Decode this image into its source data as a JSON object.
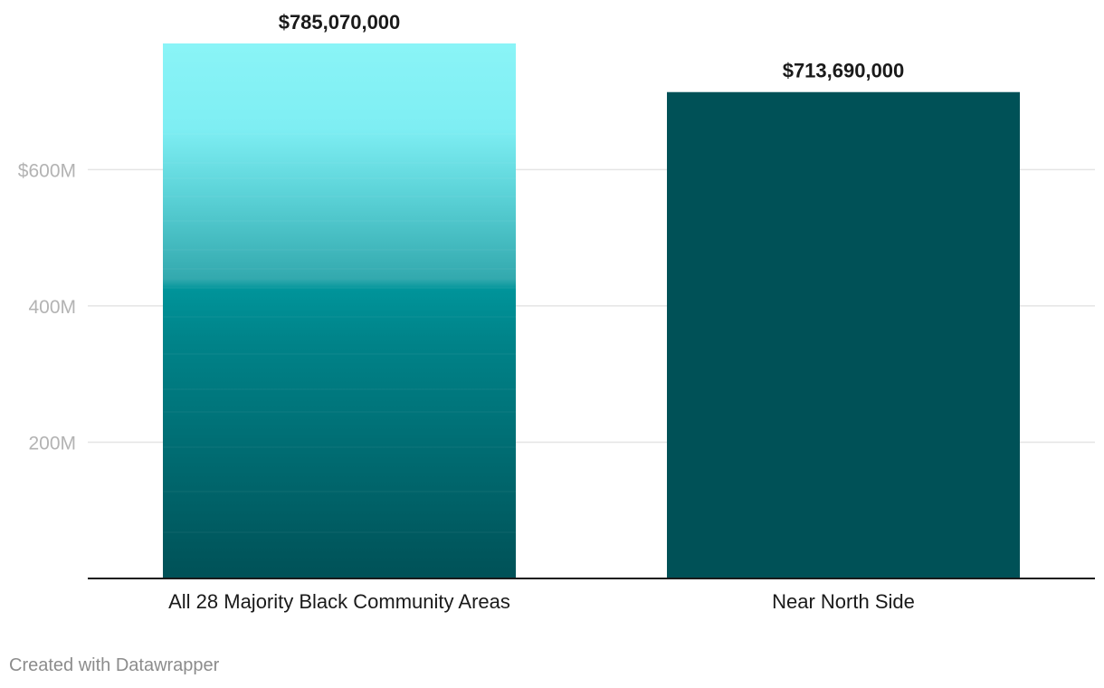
{
  "chart_data": {
    "type": "bar",
    "categories": [
      "All 28 Majority Black Community Areas",
      "Near North Side"
    ],
    "values": [
      785070000,
      713690000
    ],
    "value_labels": [
      "$785,070,000",
      "$713,690,000"
    ],
    "yticks": [
      200000000,
      400000000,
      600000000
    ],
    "ytick_labels": [
      "200M",
      "400M",
      "$600M"
    ],
    "ylim": [
      0,
      785070000
    ],
    "grid": true,
    "colors": {
      "stacked_gradient": [
        "#005157",
        "#00848a",
        "#00949a",
        "#7eeef3",
        "#8af4f7"
      ],
      "near_north_side": "#005157",
      "gridline": "#e5e5e5",
      "baseline": "#1a1a1a"
    }
  },
  "footer": {
    "credit": "Created with Datawrapper"
  }
}
